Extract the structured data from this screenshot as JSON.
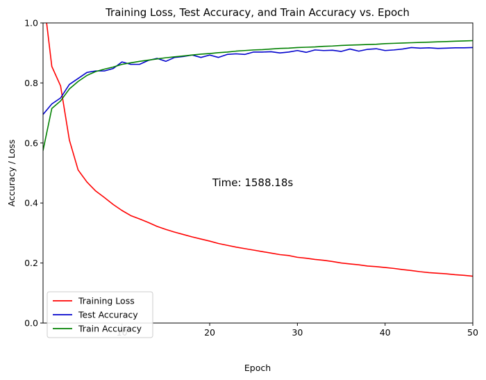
{
  "chart_data": {
    "type": "line",
    "title": "Training Loss, Test Accuracy, and Train Accuracy vs. Epoch",
    "xlabel": "Epoch",
    "ylabel": "Accuracy / Loss",
    "xlim": [
      1,
      50
    ],
    "ylim": [
      0,
      1
    ],
    "xticks": [
      10,
      20,
      30,
      40,
      50
    ],
    "yticks": [
      0.0,
      0.2,
      0.4,
      0.6,
      0.8,
      1.0
    ],
    "ytick_labels": [
      "0.0",
      "0.2",
      "0.4",
      "0.6",
      "0.8",
      "1.0"
    ],
    "grid": false,
    "legend_position": "lower-left",
    "annotation": "Time: 1588.18s",
    "x": [
      1,
      2,
      3,
      4,
      5,
      6,
      7,
      8,
      9,
      10,
      11,
      12,
      13,
      14,
      15,
      16,
      17,
      18,
      19,
      20,
      21,
      22,
      23,
      24,
      25,
      26,
      27,
      28,
      29,
      30,
      31,
      32,
      33,
      34,
      35,
      36,
      37,
      38,
      39,
      40,
      41,
      42,
      43,
      44,
      45,
      46,
      47,
      48,
      49,
      50
    ],
    "series": [
      {
        "name": "Training Loss",
        "color": "#ff0000",
        "values": [
          1.1,
          0.855,
          0.79,
          0.61,
          0.51,
          0.47,
          0.44,
          0.418,
          0.395,
          0.375,
          0.358,
          0.347,
          0.335,
          0.322,
          0.312,
          0.303,
          0.295,
          0.287,
          0.28,
          0.273,
          0.265,
          0.259,
          0.253,
          0.248,
          0.243,
          0.238,
          0.233,
          0.228,
          0.225,
          0.219,
          0.216,
          0.212,
          0.209,
          0.205,
          0.2,
          0.197,
          0.194,
          0.19,
          0.188,
          0.185,
          0.182,
          0.178,
          0.175,
          0.171,
          0.168,
          0.166,
          0.164,
          0.161,
          0.159,
          0.156
        ]
      },
      {
        "name": "Test Accuracy",
        "color": "#0000cc",
        "values": [
          0.695,
          0.73,
          0.75,
          0.795,
          0.815,
          0.835,
          0.84,
          0.84,
          0.848,
          0.87,
          0.862,
          0.862,
          0.875,
          0.882,
          0.872,
          0.885,
          0.888,
          0.893,
          0.885,
          0.893,
          0.885,
          0.895,
          0.897,
          0.895,
          0.903,
          0.903,
          0.904,
          0.9,
          0.903,
          0.908,
          0.902,
          0.91,
          0.908,
          0.909,
          0.905,
          0.913,
          0.906,
          0.912,
          0.914,
          0.908,
          0.91,
          0.913,
          0.918,
          0.916,
          0.917,
          0.915,
          0.916,
          0.917,
          0.917,
          0.918
        ]
      },
      {
        "name": "Train Accuracy",
        "color": "#008000",
        "values": [
          0.575,
          0.715,
          0.74,
          0.78,
          0.805,
          0.825,
          0.838,
          0.846,
          0.853,
          0.862,
          0.867,
          0.872,
          0.876,
          0.88,
          0.884,
          0.887,
          0.89,
          0.893,
          0.896,
          0.898,
          0.901,
          0.903,
          0.906,
          0.908,
          0.91,
          0.911,
          0.913,
          0.915,
          0.916,
          0.918,
          0.919,
          0.92,
          0.922,
          0.923,
          0.925,
          0.926,
          0.927,
          0.928,
          0.929,
          0.931,
          0.932,
          0.933,
          0.934,
          0.935,
          0.936,
          0.937,
          0.938,
          0.939,
          0.94,
          0.941
        ]
      }
    ]
  }
}
